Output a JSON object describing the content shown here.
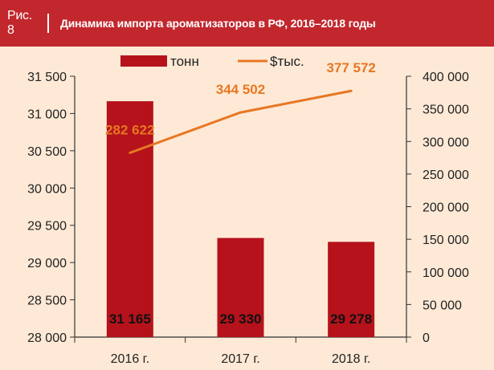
{
  "header": {
    "figure_number": "Рис. 8",
    "title": "Динамика импорта ароматизаторов в РФ, 2016–2018 годы"
  },
  "colors": {
    "header_bg": "#c1272d",
    "background": "#fde9d6",
    "bar": "#b5121b",
    "line": "#e87722"
  },
  "chart_data": {
    "type": "bar+line",
    "title": "Динамика импорта ароматизаторов в РФ, 2016–2018 годы",
    "categories": [
      "2016 г.",
      "2017 г.",
      "2018 г."
    ],
    "series": [
      {
        "name": "тонн",
        "type": "bar",
        "axis": "left",
        "values": [
          31165,
          29330,
          29278
        ],
        "labels": [
          "31 165",
          "29 330",
          "29 278"
        ]
      },
      {
        "name": "$тыс.",
        "type": "line",
        "axis": "right",
        "values": [
          282622,
          344502,
          377572
        ],
        "labels": [
          "282 622",
          "344 502",
          "377 572"
        ]
      }
    ],
    "y_left": {
      "min": 28000,
      "max": 31500,
      "ticks": [
        "28 000",
        "28 500",
        "29 000",
        "29 500",
        "30 000",
        "30 500",
        "31 000",
        "31 500"
      ]
    },
    "y_right": {
      "min": 0,
      "max": 400000,
      "ticks": [
        "0",
        "50 000",
        "100 000",
        "150 000",
        "200 000",
        "250 000",
        "300 000",
        "350 000",
        "400 000"
      ]
    },
    "legend_position": "top",
    "grid": false
  }
}
